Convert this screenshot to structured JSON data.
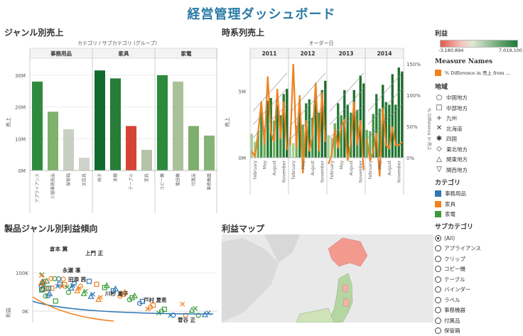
{
  "page": {
    "title": "経営管理ダッシュボード"
  },
  "genre_sales": {
    "title": "ジャンル別売上",
    "header": "カテゴリ / サブカテゴリ (グループ)",
    "ylabel": "売上",
    "yticks": [
      "30M",
      "20M",
      "10M",
      "0M"
    ],
    "groups": [
      {
        "name": "事務用品",
        "items": [
          {
            "label": "アプライアンス",
            "value": 28,
            "color": "#2e8b3e"
          },
          {
            "label": "少額事務用品",
            "value": 18.5,
            "color": "#7fb16d"
          },
          {
            "label": "保管箱",
            "value": 13,
            "color": "#c9cfc1"
          },
          {
            "label": "文房具",
            "value": 4,
            "color": "#cfd3ca"
          }
        ]
      },
      {
        "name": "家具",
        "items": [
          {
            "label": "椅子",
            "value": 31.5,
            "color": "#116b2c"
          },
          {
            "label": "本棚",
            "value": 29,
            "color": "#267d37"
          },
          {
            "label": "テーブル",
            "value": 14,
            "color": "#d64436"
          },
          {
            "label": "家具",
            "value": 6.5,
            "color": "#b5c3a8"
          }
        ]
      },
      {
        "name": "家電",
        "items": [
          {
            "label": "コピー機",
            "value": 30,
            "color": "#2b8a3c"
          },
          {
            "label": "電話機",
            "value": 28,
            "color": "#a9c199"
          },
          {
            "label": "付属品",
            "value": 14,
            "color": "#7dae6b"
          },
          {
            "label": "事務機器",
            "value": 11,
            "color": "#86b474"
          }
        ]
      }
    ]
  },
  "time_sales": {
    "title": "時系列売上",
    "header": "オーダー日",
    "ylabel": "売上",
    "ylabel2": "% Difference in 売上",
    "yticks": [
      "5M",
      "0M"
    ],
    "y2ticks": [
      "150%",
      "100%",
      "50%",
      "0%"
    ],
    "years": [
      "2011",
      "2012",
      "2013",
      "2014"
    ],
    "months": [
      "February",
      "May",
      "August",
      "November"
    ],
    "bars": [
      [
        1.8,
        1.2,
        2.0,
        3.5,
        2.2,
        4.3,
        4.5,
        2.8,
        4.0,
        3.2,
        4.8,
        5.2
      ],
      [
        1.5,
        1.1,
        2.4,
        4.0,
        2.5,
        4.1,
        4.4,
        3.0,
        4.6,
        3.4,
        5.1,
        5.8
      ],
      [
        1.7,
        1.5,
        2.6,
        4.1,
        3.2,
        5.1,
        4.0,
        3.4,
        5.1,
        3.6,
        6.2,
        5.6
      ],
      [
        2.1,
        2.0,
        3.3,
        4.8,
        3.7,
        5.5,
        4.2,
        4.0,
        6.3,
        4.0,
        6.8,
        6.5
      ]
    ],
    "pct": [
      [
        10,
        2,
        40,
        90,
        20,
        130,
        40,
        25,
        110,
        30,
        90,
        12
      ],
      [
        20,
        150,
        15,
        100,
        -25,
        60,
        10,
        35,
        120,
        10,
        105,
        25
      ],
      [
        -10,
        5,
        45,
        15,
        50,
        60,
        -5,
        25,
        90,
        20,
        60,
        -20
      ],
      [
        30,
        -5,
        10,
        40,
        -30,
        80,
        20,
        15,
        50,
        20,
        20,
        25
      ]
    ]
  },
  "scatter": {
    "title": "製品ジャンル別利益傾向",
    "ylabel": "利益",
    "yticks": [
      "100K",
      "0K"
    ],
    "names": [
      "倉本 翼",
      "上門 正",
      "永瀬 凛",
      "田添 茜",
      "川杉 重子",
      "戸村 夏希",
      "菅谷 正"
    ]
  },
  "profit_map": {
    "title": "利益マップ"
  },
  "legend": {
    "profit": {
      "title": "利益",
      "min": "-3,180,894",
      "max": "7,019,100"
    },
    "measure": {
      "title": "Measure Names",
      "item": "% Difference in 売上 from ..."
    },
    "region": {
      "title": "地域",
      "items": [
        {
          "sym": "○",
          "label": "中国地方"
        },
        {
          "sym": "□",
          "label": "中部地方"
        },
        {
          "sym": "+",
          "label": "九州"
        },
        {
          "sym": "✕",
          "label": "北海道"
        },
        {
          "sym": "✱",
          "label": "四国"
        },
        {
          "sym": "◇",
          "label": "東北地方"
        },
        {
          "sym": "△",
          "label": "関東地方"
        },
        {
          "sym": "▽",
          "label": "関西地方"
        }
      ]
    },
    "category": {
      "title": "カテゴリ",
      "items": [
        {
          "label": "事務用品",
          "color": "#2f78b5"
        },
        {
          "label": "家具",
          "color": "#f0821e"
        },
        {
          "label": "家電",
          "color": "#3a9a3a"
        }
      ]
    },
    "subcategory": {
      "title": "サブカテゴリ",
      "items": [
        "(All)",
        "アプライアンス",
        "クリップ",
        "コピー機",
        "テーブル",
        "バインダー",
        "ラベル",
        "事務機器",
        "付属品",
        "保管箱"
      ]
    }
  },
  "colors": {
    "accent": "#2a7aa5",
    "orange": "#f0821e"
  }
}
